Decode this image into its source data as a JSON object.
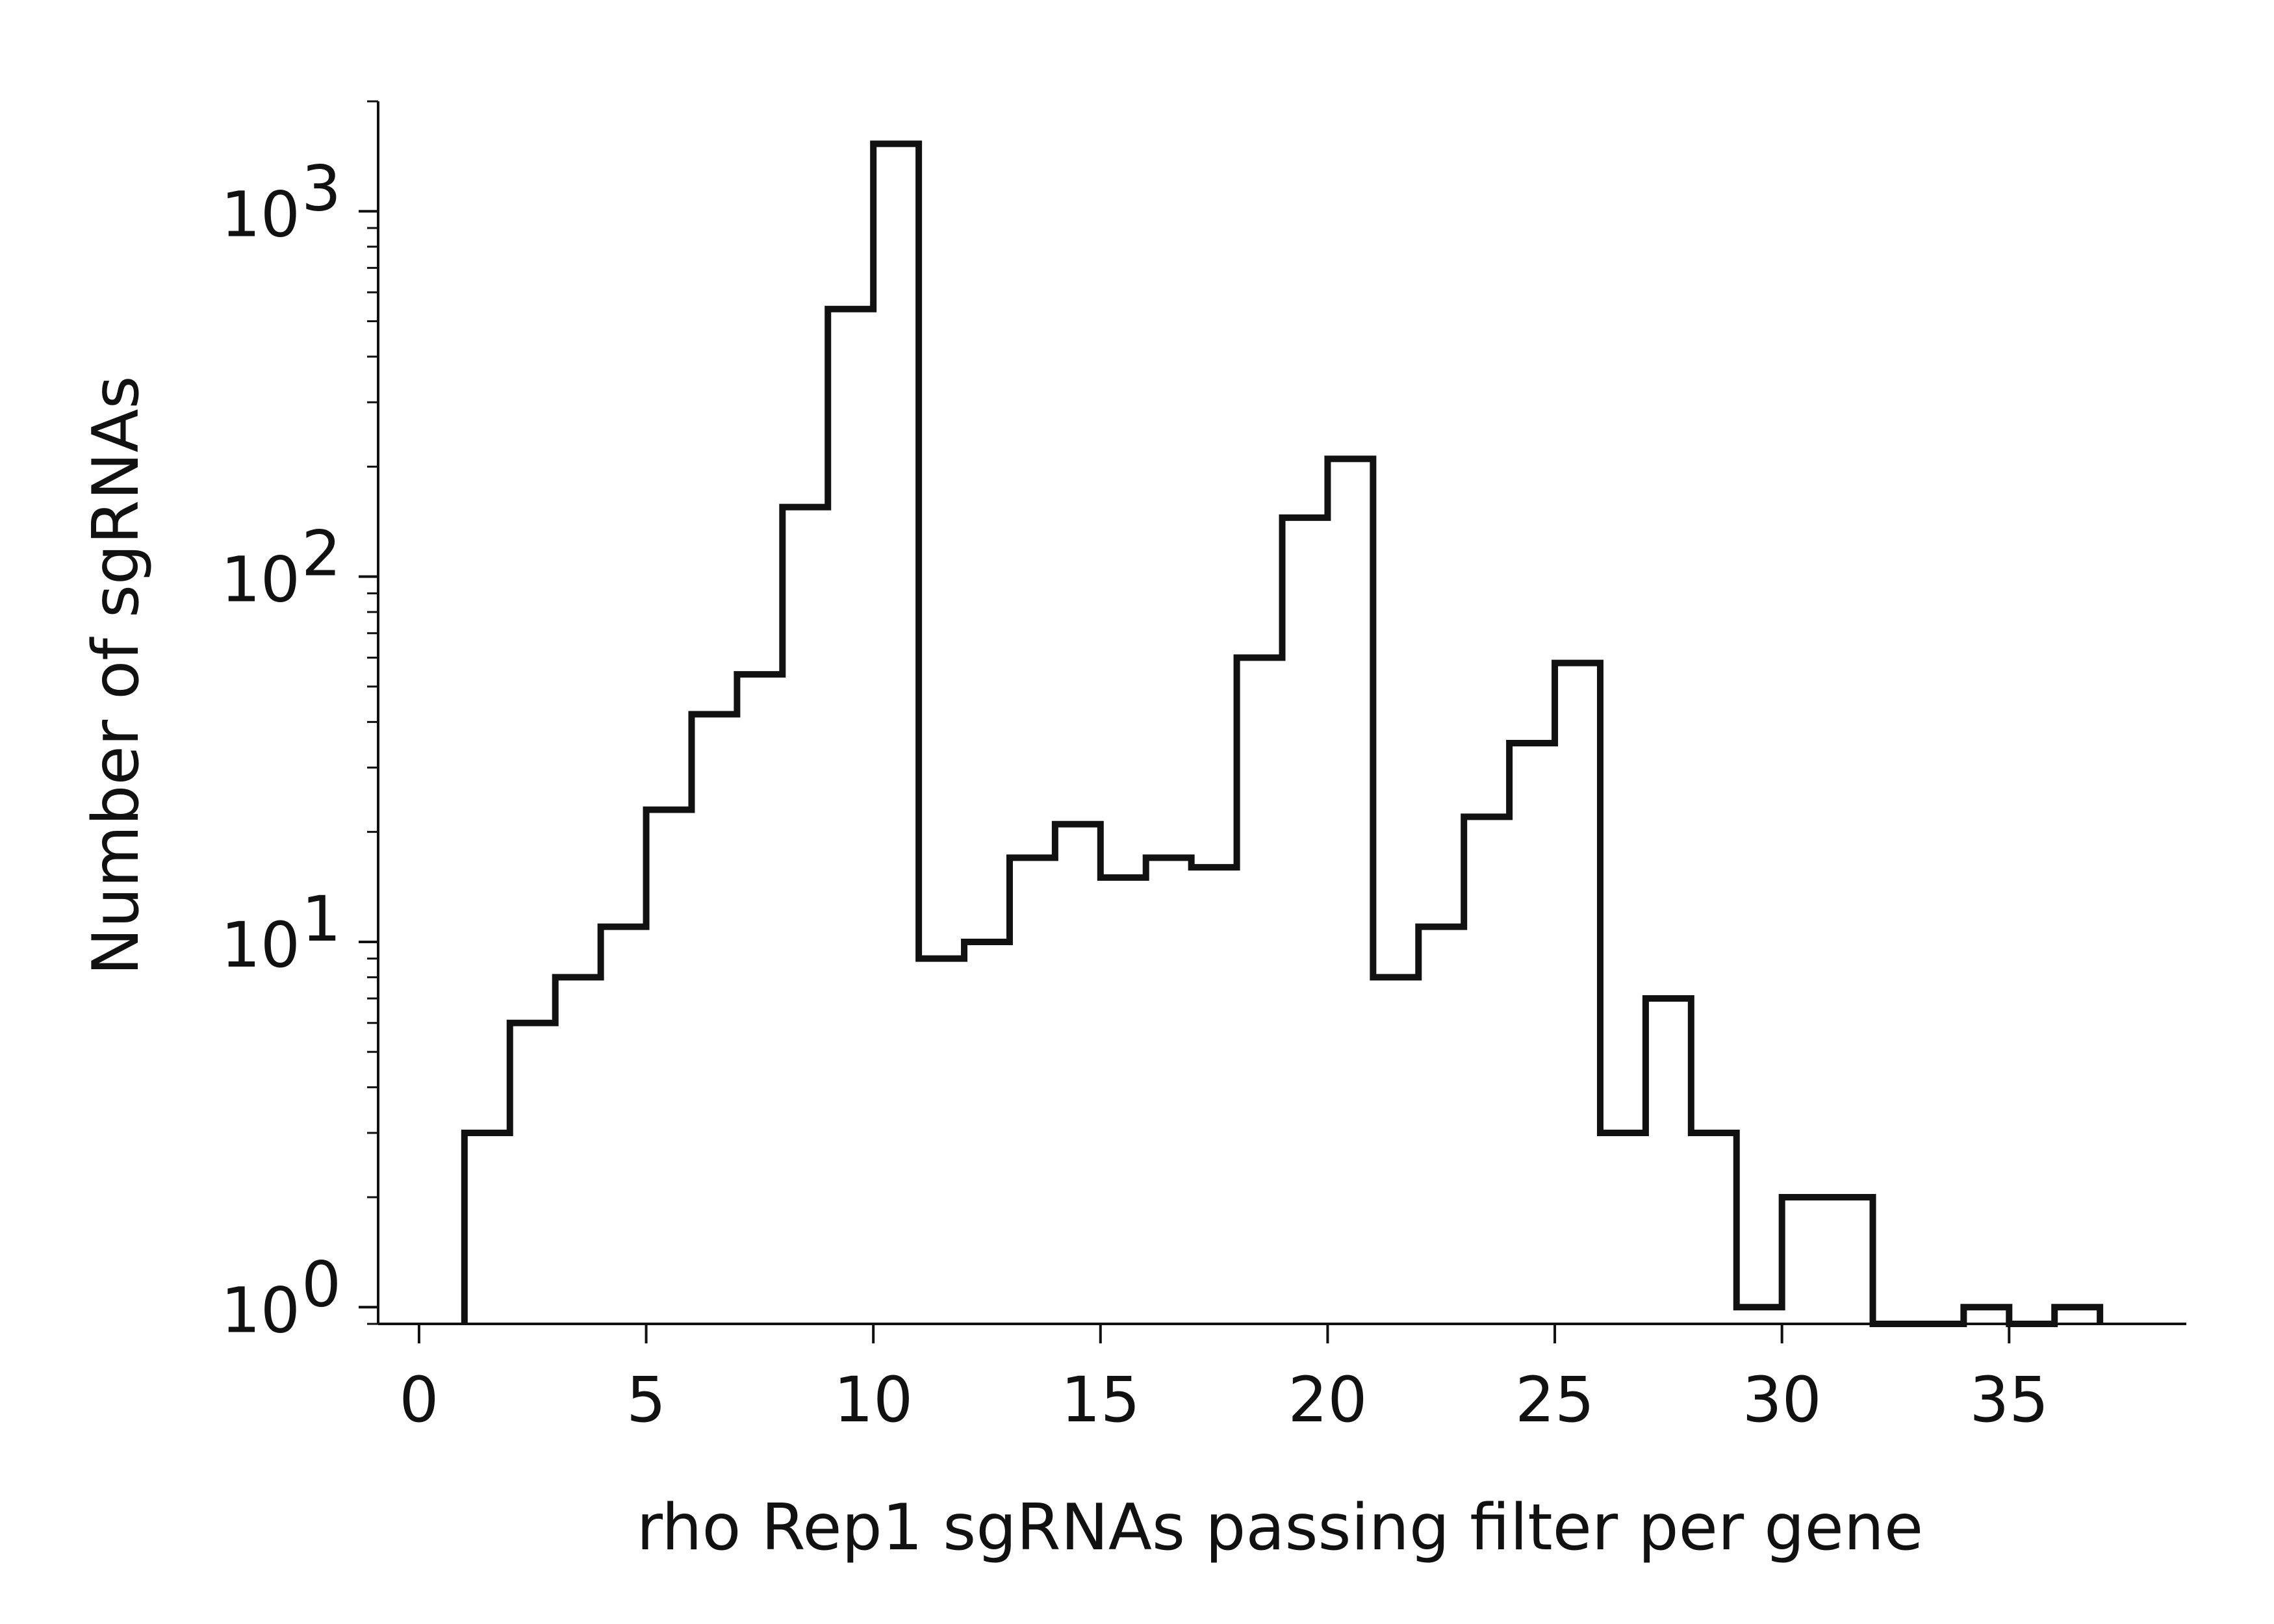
{
  "chart_data": {
    "type": "bar",
    "subtype": "step-histogram",
    "title": "",
    "xlabel": "rho Rep1 sgRNAs passing filter per gene",
    "ylabel": "Number of sgRNAs",
    "xlim": [
      -0.9,
      38.9
    ],
    "ylim": [
      0.9,
      2000
    ],
    "yscale": "log",
    "grid": false,
    "legend": "none",
    "line_color": "#111111",
    "x_ticks": [
      0,
      5,
      10,
      15,
      20,
      25,
      30,
      35
    ],
    "x_tick_labels": [
      "0",
      "5",
      "10",
      "15",
      "20",
      "25",
      "30",
      "35"
    ],
    "y_ticks": [
      1,
      10,
      100,
      1000
    ],
    "y_tick_labels": [
      {
        "base": "10",
        "exp": "0"
      },
      {
        "base": "10",
        "exp": "1"
      },
      {
        "base": "10",
        "exp": "2"
      },
      {
        "base": "10",
        "exp": "3"
      }
    ],
    "bin_edges": [
      1,
      2,
      3,
      4,
      5,
      6,
      7,
      8,
      9,
      10,
      11,
      12,
      13,
      14,
      15,
      16,
      17,
      18,
      19,
      20,
      21,
      22,
      23,
      24,
      25,
      26,
      27,
      28,
      29,
      30,
      31,
      32,
      33,
      34,
      35,
      36,
      37
    ],
    "values": [
      3,
      6,
      8,
      11,
      23,
      42,
      54,
      155,
      540,
      1530,
      9,
      10,
      17,
      21,
      15,
      17,
      16,
      60,
      145,
      210,
      8,
      11,
      22,
      35,
      58,
      3,
      7,
      3,
      1,
      2,
      2,
      0,
      0,
      1,
      0,
      1
    ]
  }
}
